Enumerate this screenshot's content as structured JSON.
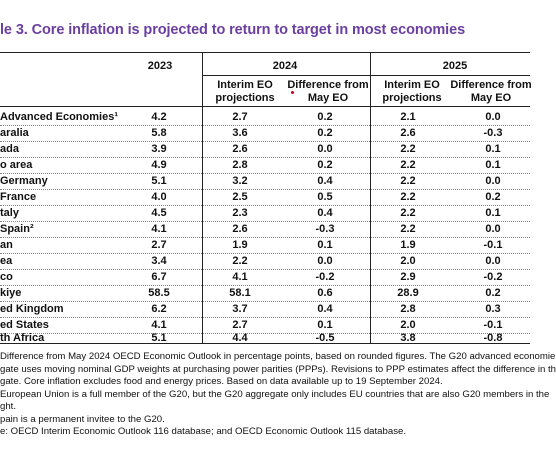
{
  "title": "le 3. Core inflation is projected to return to target in most economies",
  "headers": {
    "col2023": "2023",
    "col2024": "2024",
    "col2025": "2025",
    "interim_a": "Interim EO",
    "interim_b": "projections",
    "diff_a": "Difference from",
    "diff_b": "May EO"
  },
  "rows": [
    {
      "country": "Advanced Economies¹",
      "y2023": "4.2",
      "p2024": "2.7",
      "d2024": "0.2",
      "p2025": "2.1",
      "d2025": "0.0"
    },
    {
      "country": "aralia",
      "y2023": "5.8",
      "p2024": "3.6",
      "d2024": "0.2",
      "p2025": "2.6",
      "d2025": "-0.3"
    },
    {
      "country": "ada",
      "y2023": "3.9",
      "p2024": "2.6",
      "d2024": "0.0",
      "p2025": "2.2",
      "d2025": "0.1"
    },
    {
      "country": "o area",
      "y2023": "4.9",
      "p2024": "2.8",
      "d2024": "0.2",
      "p2025": "2.2",
      "d2025": "0.1"
    },
    {
      "country": "Germany",
      "y2023": "5.1",
      "p2024": "3.2",
      "d2024": "0.4",
      "p2025": "2.2",
      "d2025": "0.0"
    },
    {
      "country": "France",
      "y2023": "4.0",
      "p2024": "2.5",
      "d2024": "0.5",
      "p2025": "2.2",
      "d2025": "0.2"
    },
    {
      "country": "taly",
      "y2023": "4.5",
      "p2024": "2.3",
      "d2024": "0.4",
      "p2025": "2.2",
      "d2025": "0.1"
    },
    {
      "country": "Spain²",
      "y2023": "4.1",
      "p2024": "2.6",
      "d2024": "-0.3",
      "p2025": "2.2",
      "d2025": "0.0"
    },
    {
      "country": "an",
      "y2023": "2.7",
      "p2024": "1.9",
      "d2024": "0.1",
      "p2025": "1.9",
      "d2025": "-0.1"
    },
    {
      "country": "ea",
      "y2023": "3.4",
      "p2024": "2.2",
      "d2024": "0.0",
      "p2025": "2.0",
      "d2025": "0.0"
    },
    {
      "country": "co",
      "y2023": "6.7",
      "p2024": "4.1",
      "d2024": "-0.2",
      "p2025": "2.9",
      "d2025": "-0.2"
    },
    {
      "country": "kiye",
      "y2023": "58.5",
      "p2024": "58.1",
      "d2024": "0.6",
      "p2025": "28.9",
      "d2025": "0.2"
    },
    {
      "country": "ed Kingdom",
      "y2023": "6.2",
      "p2024": "3.7",
      "d2024": "0.4",
      "p2025": "2.8",
      "d2025": "0.3"
    },
    {
      "country": "ed States",
      "y2023": "4.1",
      "p2024": "2.7",
      "d2024": "0.1",
      "p2025": "2.0",
      "d2025": "-0.1"
    },
    {
      "country": "th Africa",
      "y2023": "5.1",
      "p2024": "4.4",
      "d2024": "-0.5",
      "p2025": "3.8",
      "d2025": "-0.8"
    }
  ],
  "notes": [
    "Difference from May 2024 OECD Economic Outlook in percentage points, based on rounded figures. The G20 advanced economie",
    "gate uses moving nominal GDP weights at purchasing power parities (PPPs). Revisions to PPP estimates affect the difference in th",
    "gate. Core inflation excludes food and energy prices. Based on data available up to 19 September 2024.",
    "European Union is a full member of the G20, but the G20 aggregate only includes EU countries that are also G20 members in the",
    "ght.",
    "pain is a permanent invitee to the G20.",
    "e: OECD Interim Economic Outlook 116 database; and OECD Economic Outlook 115 database."
  ],
  "colors": {
    "title": "#6b3fa0",
    "asterisk": "#d0021b"
  }
}
